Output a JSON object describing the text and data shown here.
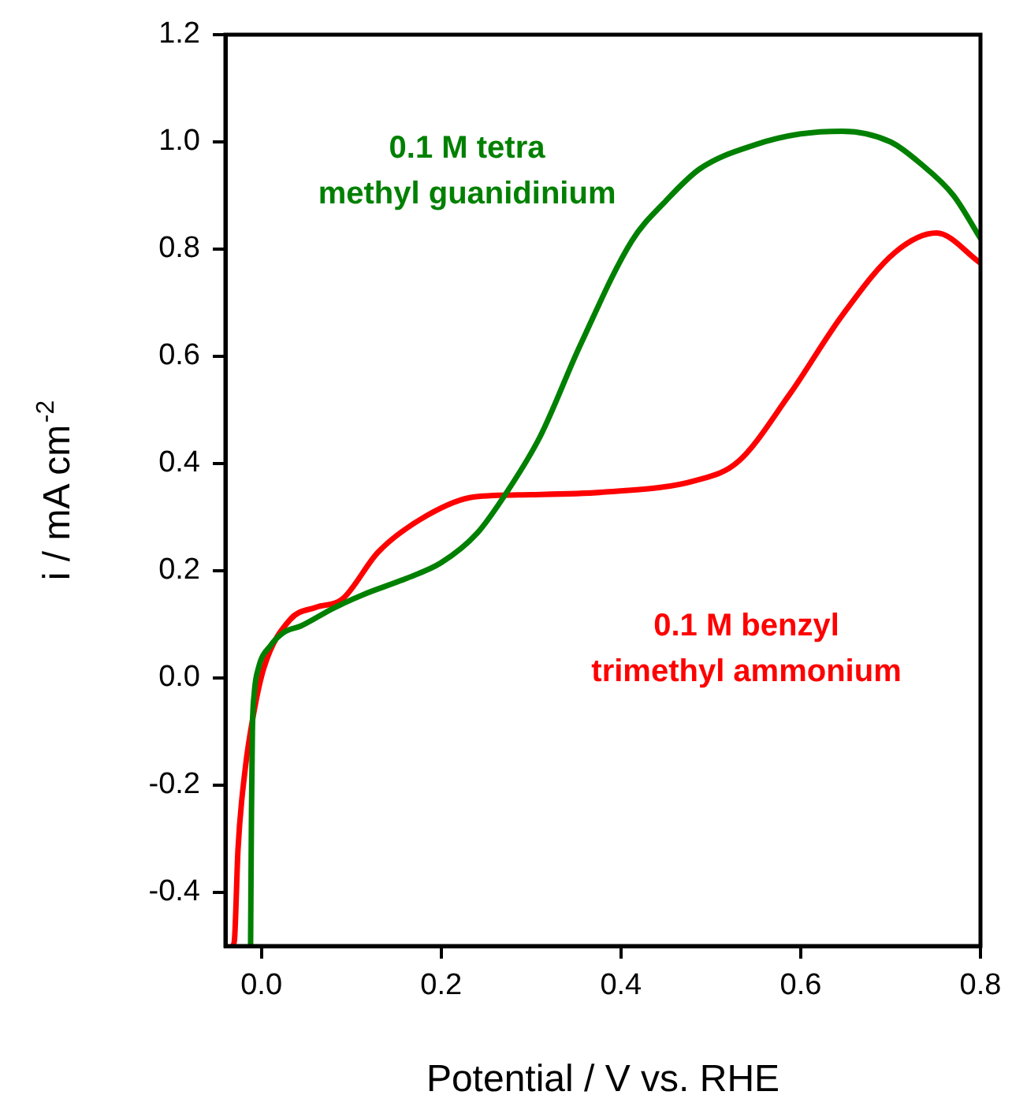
{
  "chart_data": {
    "type": "line",
    "xlabel": "Potential / V vs. RHE",
    "ylabel": "i / mA cm$^{-2}$",
    "xlim": [
      -0.04,
      0.8
    ],
    "xticks": [
      {
        "value": 0,
        "label": "0.0"
      },
      0.2,
      0.4,
      0.6,
      0.8
    ],
    "ylim": [
      -0.5,
      1.2
    ],
    "yticks": [
      -0.4,
      -0.2,
      {
        "value": 0,
        "label": "0.0"
      },
      0.2,
      0.4,
      0.6,
      0.8,
      {
        "value": 1,
        "label": "1.0"
      },
      1.2
    ],
    "legend": false,
    "marker": "none",
    "line_style": "solid",
    "series": [
      {
        "name": "0.1 M tetra\nmethyl guanidinium",
        "color": "#008000",
        "x": [
          -0.012,
          -0.011,
          -0.01,
          -0.008,
          -0.003,
          0.01,
          0.025,
          0.044,
          0.08,
          0.114,
          0.16,
          0.2,
          0.24,
          0.272,
          0.31,
          0.354,
          0.412,
          0.45,
          0.488,
          0.55,
          0.6,
          0.646,
          0.7,
          0.733,
          0.77,
          0.8
        ],
        "values": [
          -0.5,
          -0.25,
          -0.1,
          -0.03,
          0.02,
          0.06,
          0.085,
          0.097,
          0.13,
          0.156,
          0.185,
          0.215,
          0.27,
          0.344,
          0.45,
          0.618,
          0.815,
          0.89,
          0.95,
          0.995,
          1.015,
          1.02,
          1.0,
          0.96,
          0.9,
          0.82
        ]
      },
      {
        "name": "0.1 M benzyl\ntrimethyl ammonium",
        "color": "#ff0000",
        "x": [
          -0.032,
          -0.03,
          -0.026,
          -0.018,
          -0.009,
          0.003,
          0.032,
          0.061,
          0.09,
          0.13,
          0.184,
          0.237,
          0.3,
          0.383,
          0.482,
          0.53,
          0.588,
          0.646,
          0.705,
          0.751,
          0.8
        ],
        "values": [
          -0.5,
          -0.49,
          -0.32,
          -0.17,
          -0.07,
          0.02,
          0.109,
          0.132,
          0.147,
          0.235,
          0.303,
          0.338,
          0.342,
          0.347,
          0.368,
          0.403,
          0.53,
          0.676,
          0.794,
          0.83,
          0.774
        ]
      }
    ]
  }
}
